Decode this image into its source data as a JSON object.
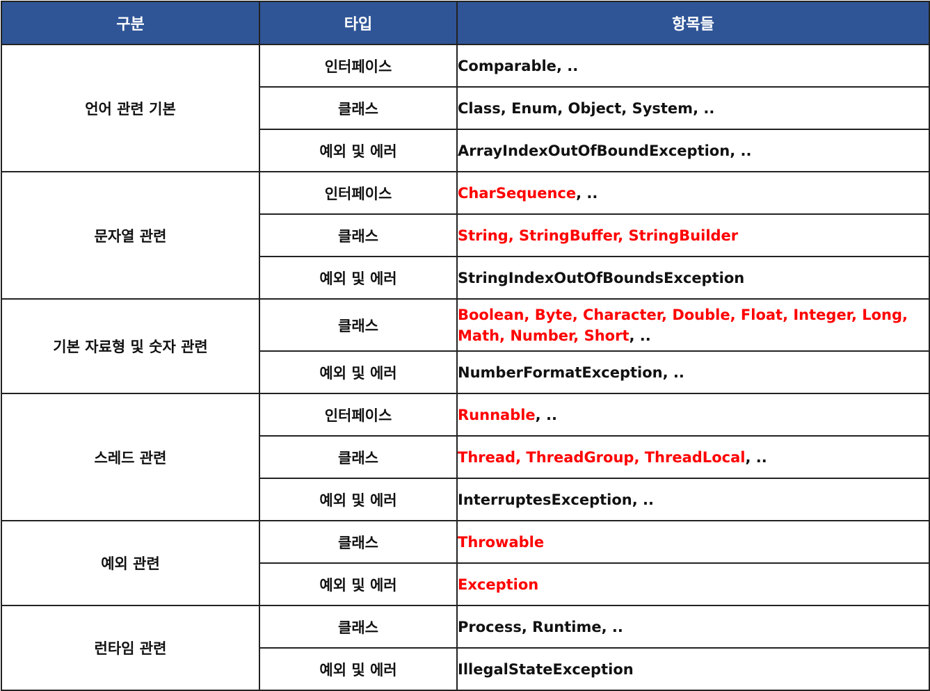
{
  "headers": {
    "category": "구분",
    "type": "타입",
    "items": "항목들"
  },
  "colors": {
    "header_background": "#2f5597",
    "header_text": "#ffffff",
    "highlight_text": "#ff0000",
    "default_text": "#111111",
    "border": "#222222"
  },
  "groups": [
    {
      "name": "언어 관련 기본",
      "rows": [
        {
          "type": "인터페이스",
          "names": "Comparable",
          "suffix": ", ..",
          "highlight": false
        },
        {
          "type": "클래스",
          "names": "Class, Enum, Object, System",
          "suffix": ", ..",
          "highlight": false
        },
        {
          "type": "예외 및 에러",
          "names": "ArrayIndexOutOfBoundException",
          "suffix": ", ..",
          "highlight": false
        }
      ]
    },
    {
      "name": "문자열 관련",
      "rows": [
        {
          "type": "인터페이스",
          "names": "CharSequence",
          "suffix": ", ..",
          "highlight": true
        },
        {
          "type": "클래스",
          "names": "String, StringBuffer, StringBuilder",
          "suffix": "",
          "highlight": true
        },
        {
          "type": "예외 및 에러",
          "names": "StringIndexOutOfBoundsException",
          "suffix": "",
          "highlight": false
        }
      ]
    },
    {
      "name": "기본 자료형 및 숫자 관련",
      "rows": [
        {
          "type": "클래스",
          "names": "Boolean, Byte, Character, Double, Float, Integer, Long, Math, Number, Short",
          "suffix": ", ..",
          "highlight": true
        },
        {
          "type": "예외 및 에러",
          "names": "NumberFormatException",
          "suffix": ", ..",
          "highlight": false
        }
      ]
    },
    {
      "name": "스레드 관련",
      "rows": [
        {
          "type": "인터페이스",
          "names": "Runnable",
          "suffix": ", ..",
          "highlight": true
        },
        {
          "type": "클래스",
          "names": "Thread, ThreadGroup, ThreadLocal",
          "suffix": ", ..",
          "highlight": true
        },
        {
          "type": "예외 및 에러",
          "names": "InterruptesException",
          "suffix": ", ..",
          "highlight": false
        }
      ]
    },
    {
      "name": "예외 관련",
      "rows": [
        {
          "type": "클래스",
          "names": "Throwable",
          "suffix": "",
          "highlight": true
        },
        {
          "type": "예외 및 에러",
          "names": "Exception",
          "suffix": "",
          "highlight": true
        }
      ]
    },
    {
      "name": "런타임 관련",
      "rows": [
        {
          "type": "클래스",
          "names": "Process, Runtime",
          "suffix": ", ..",
          "highlight": false
        },
        {
          "type": "예외 및 에러",
          "names": "IllegalStateException",
          "suffix": "",
          "highlight": false
        }
      ]
    }
  ]
}
